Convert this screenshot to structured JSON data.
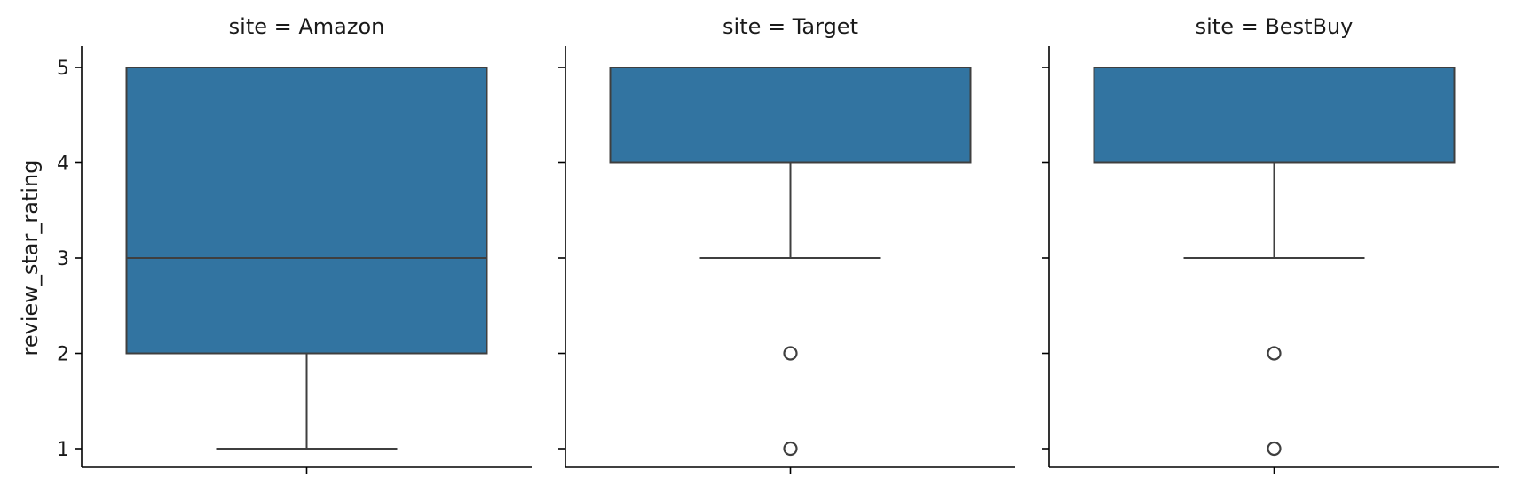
{
  "chart_data": {
    "type": "box",
    "ylabel": "review_star_rating",
    "ylim": [
      0.8,
      5.2
    ],
    "yticks": [
      1,
      2,
      3,
      4,
      5
    ],
    "grid": false,
    "box_color": "#3274a1",
    "line_color": "#3f3f3f",
    "panels": [
      {
        "title": "site = Amazon",
        "q1": 2,
        "median": 3,
        "q3": 5,
        "whisker_low": 1,
        "whisker_high": 5,
        "outliers": []
      },
      {
        "title": "site = Target",
        "q1": 4,
        "median": 5,
        "q3": 5,
        "whisker_low": 3,
        "whisker_high": 5,
        "outliers": [
          2,
          1
        ]
      },
      {
        "title": "site = BestBuy",
        "q1": 4,
        "median": 5,
        "q3": 5,
        "whisker_low": 3,
        "whisker_high": 5,
        "outliers": [
          2,
          1
        ]
      }
    ]
  }
}
